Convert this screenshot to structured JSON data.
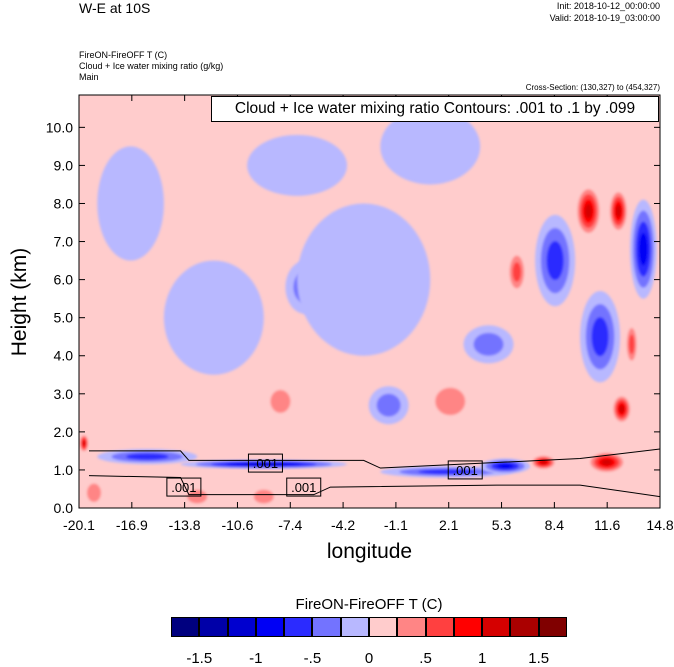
{
  "header": {
    "title": "W-E at 10S",
    "init": "Init: 2018-10-12_00:00:00",
    "valid": "Valid: 2018-10-19_03:00:00",
    "field_lines": [
      "FireON-FireOFF T   (C)",
      "Cloud + Ice water mixing ratio   (g/kg)",
      "Main"
    ],
    "cross_section": "Cross-Section: (130,327) to (454,327)"
  },
  "chart_data": {
    "type": "heatmap",
    "title": "Cloud + Ice water mixing ratio Contours: .001 to .1 by .099",
    "xlabel": "longitude",
    "ylabel": "Height (km)",
    "xlim": [
      -20.1,
      14.8
    ],
    "ylim": [
      0,
      10.85
    ],
    "xticks": [
      "-20.1",
      "-16.9",
      "-13.8",
      "-10.6",
      "-7.4",
      "-4.2",
      "-1.1",
      "2.1",
      "5.3",
      "8.4",
      "11.6",
      "14.8"
    ],
    "yticks": [
      "0.0",
      "1.0",
      "2.0",
      "3.0",
      "4.0",
      "5.0",
      "6.0",
      "7.0",
      "8.0",
      "9.0",
      "10.0"
    ],
    "contour_labels": [
      {
        "text": ".001",
        "x": -8.9,
        "y": 1.18
      },
      {
        "text": ".001",
        "x": -13.8,
        "y": 0.55
      },
      {
        "text": ".001",
        "x": -6.6,
        "y": 0.55
      },
      {
        "text": ".001",
        "x": 3.1,
        "y": 1.0
      }
    ],
    "colorbar": {
      "title": "FireON-FireOFF T  (C)",
      "levels": [
        -1.5,
        -1.25,
        -1,
        -0.75,
        -0.5,
        -0.25,
        0,
        0.25,
        0.5,
        0.75,
        1,
        1.25,
        1.5
      ],
      "tick_labels": {
        "-1.5": "-1.5",
        "-1": "-1",
        "-0.5": "-.5",
        "0": "0",
        "0.5": ".5",
        "1": "1",
        "1.5": "1.5"
      },
      "colors": [
        "#00007f",
        "#0000a8",
        "#0000cf",
        "#0000f5",
        "#2b2bff",
        "#7373ff",
        "#b8b8ff",
        "#ffcccc",
        "#ff8585",
        "#ff4040",
        "#ff0000",
        "#d50000",
        "#aa0000",
        "#800000"
      ]
    },
    "features": [
      {
        "x": -9,
        "y": 1.15,
        "v": -1.4,
        "rx": 5,
        "ry": 0.12
      },
      {
        "x": -16,
        "y": 1.35,
        "v": -0.9,
        "rx": 3,
        "ry": 0.2
      },
      {
        "x": 2,
        "y": 0.95,
        "v": -0.9,
        "rx": 4,
        "ry": 0.15
      },
      {
        "x": 5.5,
        "y": 1.1,
        "v": -1.1,
        "rx": 1.5,
        "ry": 0.2
      },
      {
        "x": 7.8,
        "y": 1.2,
        "v": 1.2,
        "rx": 0.8,
        "ry": 0.2
      },
      {
        "x": 11.6,
        "y": 1.2,
        "v": 1.4,
        "rx": 1.2,
        "ry": 0.3
      },
      {
        "x": 10.5,
        "y": 7.8,
        "v": 1.3,
        "rx": 0.8,
        "ry": 0.7
      },
      {
        "x": 12.3,
        "y": 7.8,
        "v": 1.4,
        "rx": 0.6,
        "ry": 0.6
      },
      {
        "x": 6.2,
        "y": 6.2,
        "v": 0.9,
        "rx": 0.6,
        "ry": 0.6
      },
      {
        "x": 12.5,
        "y": 2.6,
        "v": 1.3,
        "rx": 0.6,
        "ry": 0.4
      },
      {
        "x": 13.1,
        "y": 4.3,
        "v": 0.9,
        "rx": 0.4,
        "ry": 0.6
      },
      {
        "x": 11.2,
        "y": 4.5,
        "v": -0.9,
        "rx": 1.2,
        "ry": 1.2
      },
      {
        "x": 13.8,
        "y": 6.8,
        "v": -1.1,
        "rx": 0.8,
        "ry": 1.3
      },
      {
        "x": 8.5,
        "y": 6.5,
        "v": -0.7,
        "rx": 1.2,
        "ry": 1.2
      },
      {
        "x": -6.5,
        "y": 5.8,
        "v": -0.6,
        "rx": 1.2,
        "ry": 0.7
      },
      {
        "x": 4.5,
        "y": 4.3,
        "v": -0.6,
        "rx": 1.5,
        "ry": 0.5
      },
      {
        "x": -1.5,
        "y": 2.7,
        "v": -0.6,
        "rx": 1.2,
        "ry": 0.5
      },
      {
        "x": -12,
        "y": 5,
        "v": -0.2,
        "rx": 3,
        "ry": 1.5
      },
      {
        "x": -3,
        "y": 6,
        "v": -0.2,
        "rx": 4,
        "ry": 2
      },
      {
        "x": -17,
        "y": 8,
        "v": -0.2,
        "rx": 2,
        "ry": 1.5
      },
      {
        "x": -7,
        "y": 9,
        "v": -0.2,
        "rx": 3,
        "ry": 0.8
      },
      {
        "x": 1,
        "y": 9.5,
        "v": -0.2,
        "rx": 3,
        "ry": 1
      },
      {
        "x": -8,
        "y": 2.8,
        "v": 0.6,
        "rx": 1,
        "ry": 0.5
      },
      {
        "x": 2.2,
        "y": 2.8,
        "v": 0.5,
        "rx": 1.5,
        "ry": 0.6
      },
      {
        "x": -13,
        "y": 0.3,
        "v": 0.5,
        "rx": 1,
        "ry": 0.3
      },
      {
        "x": -9,
        "y": 0.3,
        "v": 0.5,
        "rx": 1,
        "ry": 0.3
      },
      {
        "x": -19.2,
        "y": 0.4,
        "v": 0.5,
        "rx": 0.7,
        "ry": 0.4
      },
      {
        "x": -19.8,
        "y": 1.7,
        "v": 1.2,
        "rx": 0.3,
        "ry": 0.25
      }
    ]
  }
}
